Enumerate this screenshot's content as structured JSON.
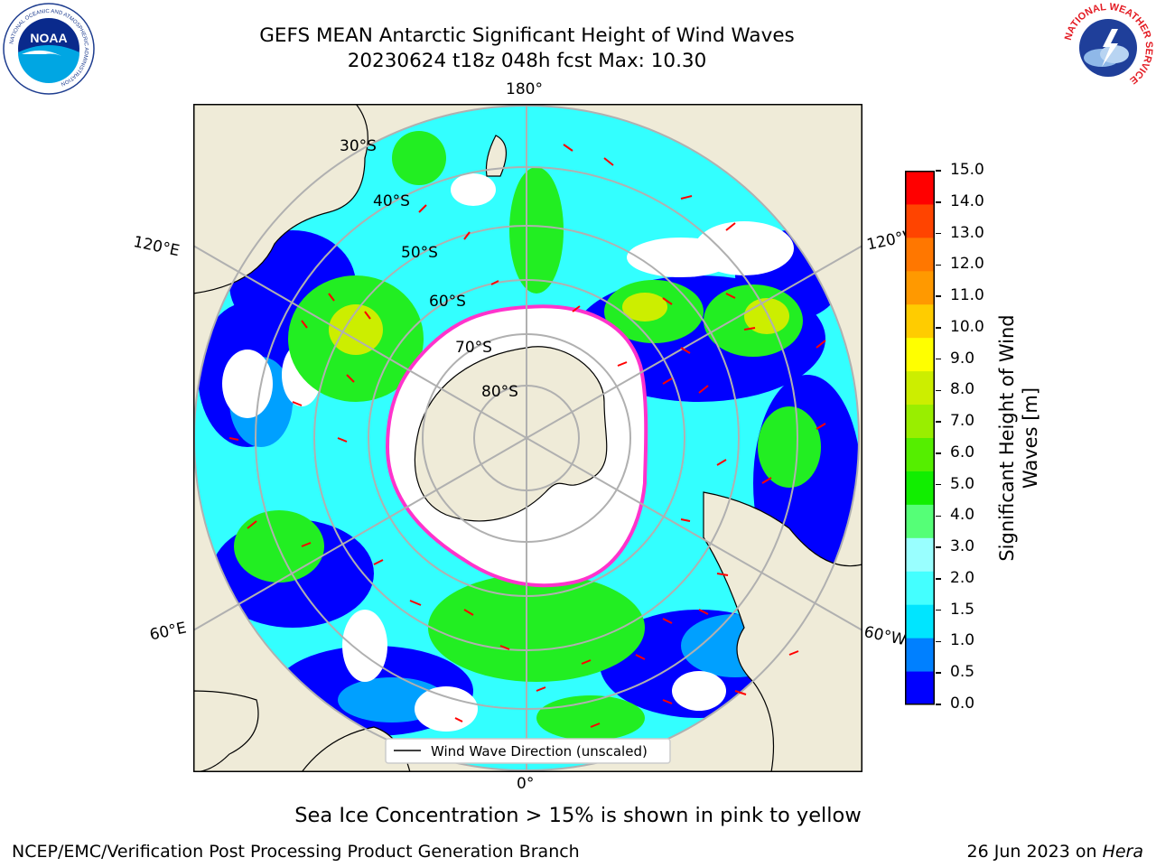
{
  "header": {
    "title_line1": "GEFS MEAN Antarctic Significant Height of Wind Waves",
    "title_line2": "20230624 t18z 048h fcst   Max: 10.30"
  },
  "logos": {
    "left": {
      "name": "NOAA",
      "ring_text": "NATIONAL OCEANIC AND ATMOSPHERIC ADMINISTRATION",
      "bottom_text": "U.S. DEPARTMENT OF COMMERCE"
    },
    "right": {
      "name": "NATIONAL WEATHER SERVICE"
    }
  },
  "map": {
    "projection": "south polar stereographic",
    "longitude_labels": {
      "top": "180°",
      "bottom": "0°",
      "upper_left": "120°E",
      "upper_right": "120°W",
      "lower_left": "60°E",
      "lower_right": "60°W"
    },
    "latitude_labels": [
      "30°S",
      "40°S",
      "50°S",
      "60°S",
      "70°S",
      "80°S"
    ],
    "legend_label": "Wind Wave Direction (unscaled)",
    "colors": {
      "ocean_low": "#0000ff",
      "land": "#efebd8",
      "ice_edge": "#ff33cc",
      "arrows": "#ff0000",
      "grid": "#b0b0b0"
    }
  },
  "colorbar": {
    "label_line1": "Significant Height of Wind",
    "label_line2": "Waves [m]",
    "ticks": [
      "0.0",
      "0.5",
      "1.0",
      "1.5",
      "2.0",
      "3.0",
      "4.0",
      "5.0",
      "6.0",
      "7.0",
      "8.0",
      "9.0",
      "10.0",
      "11.0",
      "12.0",
      "13.0",
      "14.0",
      "15.0"
    ],
    "colors": [
      "#0000ff",
      "#0080ff",
      "#00e5ff",
      "#44ffff",
      "#99ffff",
      "#55ff77",
      "#11ee00",
      "#55ee00",
      "#99ee00",
      "#ccee00",
      "#ffff00",
      "#ffcc00",
      "#ff9900",
      "#ff7700",
      "#ff4400",
      "#ff0000"
    ]
  },
  "note": "Sea Ice Concentration > 15% is shown in pink to yellow",
  "footer": {
    "left": "NCEP/EMC/Verification Post Processing Product Generation Branch",
    "right_date": "26 Jun 2023 on ",
    "right_host": "Hera"
  }
}
